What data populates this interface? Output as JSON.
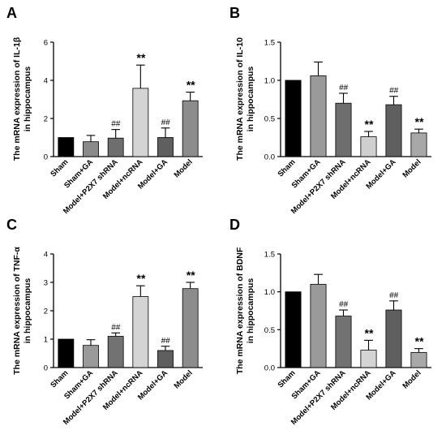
{
  "chart_data": [
    {
      "panel": "A",
      "type": "bar",
      "ylabel": [
        "The mRNA expression of IL-1β",
        "in hippocampus"
      ],
      "ylim": [
        0,
        6
      ],
      "yticks": [
        0,
        2,
        4,
        6
      ],
      "categories": [
        "Sham",
        "Sham+GA",
        "Model+P2X7 shRNA",
        "Model+ncRNA",
        "Model+GA",
        "Model"
      ],
      "values": [
        1.0,
        0.78,
        0.97,
        3.58,
        1.0,
        2.93
      ],
      "errors": [
        0,
        0.33,
        0.45,
        1.22,
        0.5,
        0.45
      ],
      "annotations": [
        "",
        "",
        "##",
        "**",
        "##",
        "**"
      ],
      "colors": [
        "#000000",
        "#8a8a8a",
        "#6e6e6e",
        "#d4d4d4",
        "#5f5f5f",
        "#8c8c8c"
      ]
    },
    {
      "panel": "B",
      "type": "bar",
      "ylabel": [
        "The mRNA expression of IL-10",
        "in hippocampus"
      ],
      "ylim": [
        0,
        1.5
      ],
      "yticks": [
        "0.0",
        "0.5",
        "1.0",
        "1.5"
      ],
      "categories": [
        "Sham",
        "Sham+GA",
        "Model+P2X7 shRNA",
        "Model+ncRNA",
        "Model+GA",
        "Model"
      ],
      "values": [
        1.0,
        1.06,
        0.7,
        0.26,
        0.68,
        0.31
      ],
      "errors": [
        0,
        0.18,
        0.13,
        0.07,
        0.11,
        0.05
      ],
      "annotations": [
        "",
        "",
        "##",
        "**",
        "##",
        "**"
      ],
      "colors": [
        "#000000",
        "#9a9a9a",
        "#6e6e6e",
        "#cfcfcf",
        "#5f5f5f",
        "#a8a8a8"
      ]
    },
    {
      "panel": "C",
      "type": "bar",
      "ylabel": [
        "The mRNA expression of TNF-α",
        "in hippocampus"
      ],
      "ylim": [
        0,
        4
      ],
      "yticks": [
        0,
        1,
        2,
        3,
        4
      ],
      "categories": [
        "Sham",
        "Sham+GA",
        "Model+P2X7 shRNA",
        "Model+ncRNA",
        "Model+GA",
        "Model"
      ],
      "values": [
        1.0,
        0.78,
        1.1,
        2.5,
        0.6,
        2.78
      ],
      "errors": [
        0,
        0.2,
        0.12,
        0.38,
        0.15,
        0.22
      ],
      "annotations": [
        "",
        "",
        "##",
        "**",
        "##",
        "**"
      ],
      "colors": [
        "#000000",
        "#9a9a9a",
        "#727272",
        "#d4d4d4",
        "#5f5f5f",
        "#8c8c8c"
      ]
    },
    {
      "panel": "D",
      "type": "bar",
      "ylabel": [
        "The mRNA expression of BDNF",
        "in hippocampus"
      ],
      "ylim": [
        0,
        1.5
      ],
      "yticks": [
        "0.0",
        "0.5",
        "1.0",
        "1.5"
      ],
      "categories": [
        "Sham",
        "Sham+GA",
        "Model+P2X7 shRNA",
        "Model+ncRNA",
        "Model+GA",
        "Model"
      ],
      "values": [
        1.0,
        1.1,
        0.68,
        0.23,
        0.76,
        0.2
      ],
      "errors": [
        0,
        0.13,
        0.08,
        0.13,
        0.12,
        0.05
      ],
      "annotations": [
        "",
        "",
        "##",
        "**",
        "##",
        "**"
      ],
      "colors": [
        "#000000",
        "#9a9a9a",
        "#727272",
        "#d4d4d4",
        "#5f5f5f",
        "#a8a8a8"
      ]
    }
  ]
}
